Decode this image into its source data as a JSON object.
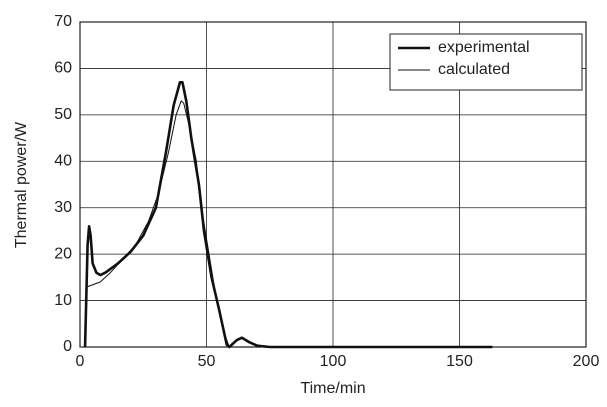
{
  "chart_data": {
    "type": "line",
    "xlabel": "Time/min",
    "ylabel": "Thermal power/W",
    "xlim": [
      0,
      200
    ],
    "xticks": [
      0,
      50,
      100,
      150,
      200
    ],
    "ylim": [
      0,
      70
    ],
    "yticks": [
      0,
      10,
      20,
      30,
      40,
      50,
      60,
      70
    ],
    "grid": true,
    "legend": "upper right",
    "series": [
      {
        "name": "experimental",
        "color": "#111111",
        "linewidth": 2.6,
        "x": [
          2,
          3,
          3.6,
          4.2,
          5,
          6.5,
          8,
          10,
          15,
          20,
          25,
          30,
          34,
          37,
          39.5,
          40.5,
          42,
          44,
          47,
          49,
          52,
          55,
          57,
          58,
          59,
          62,
          64,
          67,
          70,
          75,
          163
        ],
        "values": [
          0,
          22,
          26,
          24,
          18,
          16,
          15.5,
          16,
          18,
          20.5,
          24,
          30,
          42,
          52,
          57,
          57,
          53,
          45,
          35,
          25,
          15,
          8,
          3,
          0.5,
          0,
          1.5,
          2,
          1,
          0.3,
          0,
          0
        ]
      },
      {
        "name": "calculated",
        "color": "#111111",
        "linewidth": 1,
        "x": [
          3,
          8,
          12,
          17,
          22,
          27,
          31,
          35,
          38,
          40,
          41,
          43,
          46,
          48,
          51,
          54,
          57,
          59,
          163
        ],
        "values": [
          13,
          14,
          16,
          19,
          22,
          27,
          33,
          42,
          50,
          53,
          52.5,
          48,
          40,
          30,
          20,
          10,
          3,
          0,
          0
        ]
      }
    ]
  }
}
